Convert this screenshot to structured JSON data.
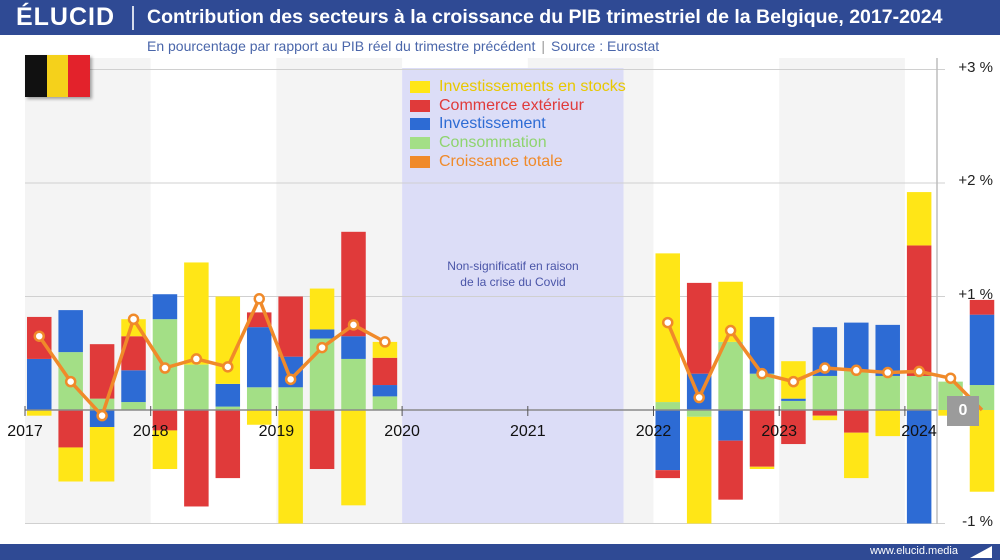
{
  "brand": "ÉLUCID",
  "title": "Contribution des secteurs à la croissance du PIB trimestriel de la Belgique, 2017-2024",
  "subtitle": "En pourcentage par rapport au PIB réel du trimestre précédent",
  "source": "Source : Eurostat",
  "footer_url": "www.elucid.media",
  "covid_note_line1": "Non-significatif en raison",
  "covid_note_line2": "de la crise du Covid",
  "flag_colors": [
    "#111111",
    "#f5d11b",
    "#e3222b"
  ],
  "colors": {
    "stocks": "#ffe617",
    "commerce": "#e03a3a",
    "investissement": "#2d6bd4",
    "consommation": "#a3df86",
    "croissance": "#f08a2a",
    "header": "#2f4a94",
    "covid_band": "#dcddf7"
  },
  "chart_data": {
    "type": "bar",
    "stacked": true,
    "title": "Contribution des secteurs à la croissance du PIB trimestriel de la Belgique, 2017-2024",
    "ylabel": "",
    "ylim": [
      -1,
      3
    ],
    "yticks": [
      {
        "value": 3,
        "label": "+3 %"
      },
      {
        "value": 2,
        "label": "+2 %"
      },
      {
        "value": 1,
        "label": "+1 %"
      },
      {
        "value": 0,
        "label": "0"
      },
      {
        "value": -1,
        "label": "-1 %"
      }
    ],
    "years": [
      "2017",
      "2018",
      "2019",
      "2020",
      "2021",
      "2022",
      "2023",
      "2024"
    ],
    "covid_gap": [
      "2020",
      "2021"
    ],
    "legend": [
      {
        "key": "stocks",
        "label": "Investissements en stocks"
      },
      {
        "key": "commerce",
        "label": "Commerce extérieur"
      },
      {
        "key": "investissement",
        "label": "Investissement"
      },
      {
        "key": "consommation",
        "label": "Consommation"
      },
      {
        "key": "croissance",
        "label": "Croissance totale"
      }
    ],
    "categories": [
      "2017 T1",
      "2017 T2",
      "2017 T3",
      "2017 T4",
      "2018 T1",
      "2018 T2",
      "2018 T3",
      "2018 T4",
      "2019 T1",
      "2019 T2",
      "2019 T3",
      "2019 T4",
      "2022 T1",
      "2022 T2",
      "2022 T3",
      "2022 T4",
      "2023 T1",
      "2023 T2",
      "2023 T3",
      "2023 T4",
      "2024 T1",
      "2024 T2",
      "2024 T3"
    ],
    "series": [
      {
        "name": "Consommation",
        "key": "consommation",
        "values": [
          0.0,
          0.51,
          0.1,
          0.07,
          0.8,
          0.4,
          0.03,
          0.2,
          0.2,
          0.63,
          0.45,
          0.12,
          0.07,
          -0.06,
          0.6,
          0.32,
          0.08,
          0.3,
          0.35,
          0.3,
          0.3,
          0.25,
          0.22
        ]
      },
      {
        "name": "Investissement",
        "key": "investissement",
        "values": [
          0.45,
          0.37,
          -0.15,
          0.28,
          0.22,
          0.0,
          0.2,
          0.53,
          0.27,
          0.08,
          0.2,
          0.1,
          -0.53,
          0.32,
          -0.27,
          0.5,
          0.02,
          0.43,
          0.42,
          0.45,
          -1.0,
          0.0,
          0.62
        ]
      },
      {
        "name": "Commerce extérieur",
        "key": "commerce",
        "values": [
          0.37,
          -0.33,
          0.48,
          0.3,
          -0.18,
          -0.85,
          -0.6,
          0.13,
          0.53,
          -0.52,
          0.92,
          0.24,
          -0.07,
          0.8,
          -0.52,
          -0.5,
          -0.3,
          -0.05,
          -0.2,
          0.0,
          1.15,
          0.0,
          0.13
        ]
      },
      {
        "name": "Investissements en stocks",
        "key": "stocks",
        "values": [
          -0.05,
          -0.3,
          -0.48,
          0.15,
          -0.34,
          0.9,
          0.77,
          -0.13,
          -1.0,
          0.36,
          -0.84,
          0.14,
          1.31,
          -0.94,
          0.53,
          -0.02,
          0.33,
          -0.04,
          -0.4,
          -0.23,
          0.47,
          -0.05,
          -0.72
        ]
      }
    ],
    "growth": {
      "name": "Croissance totale",
      "key": "croissance",
      "values": [
        0.65,
        0.25,
        -0.05,
        0.8,
        0.37,
        0.45,
        0.38,
        0.98,
        0.27,
        0.55,
        0.75,
        0.6,
        0.77,
        0.11,
        0.7,
        0.32,
        0.25,
        0.37,
        0.35,
        0.33,
        0.34,
        0.28,
        0.0
      ]
    }
  }
}
